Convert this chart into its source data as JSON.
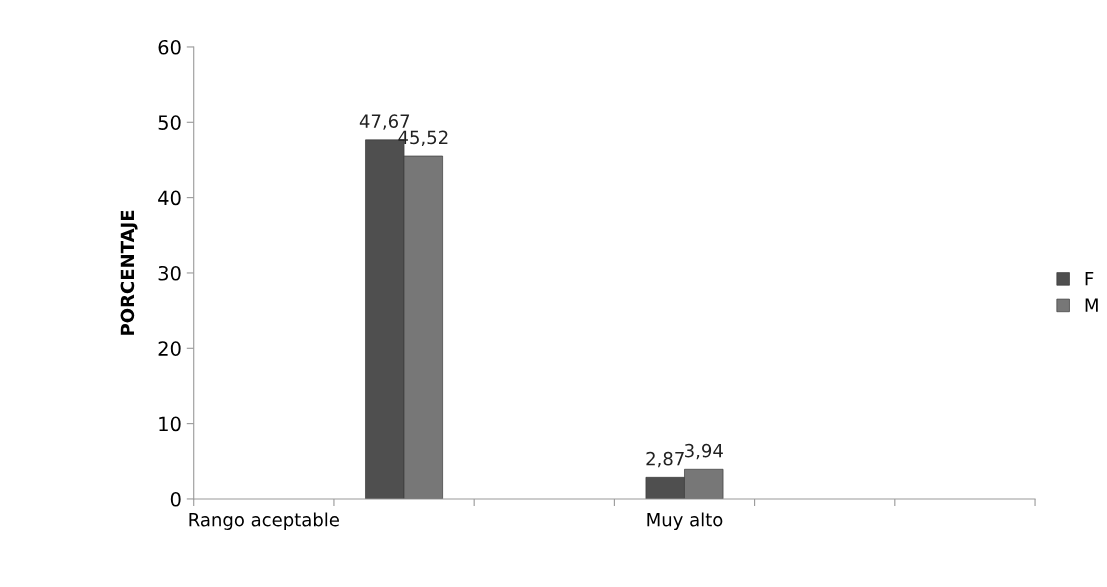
{
  "chart_data": {
    "type": "bar",
    "ylabel": "PORCENTAJE",
    "categories": [
      "Rango aceptable",
      null,
      null,
      "Muy alto",
      null,
      null
    ],
    "series": [
      {
        "name": "F",
        "color": "#4f4f4f",
        "values": [
          null,
          47.67,
          null,
          2.87,
          null,
          null
        ],
        "value_labels": [
          null,
          "47,67",
          null,
          "2,87",
          null,
          null
        ]
      },
      {
        "name": "M",
        "color": "#777777",
        "values": [
          null,
          45.52,
          null,
          3.94,
          null,
          null
        ],
        "value_labels": [
          null,
          "45,52",
          null,
          "3,94",
          null,
          null
        ]
      }
    ],
    "ylim": [
      0,
      60
    ],
    "yticks": [
      0,
      10,
      20,
      30,
      40,
      50,
      60
    ],
    "grid": false,
    "legend": "right"
  }
}
